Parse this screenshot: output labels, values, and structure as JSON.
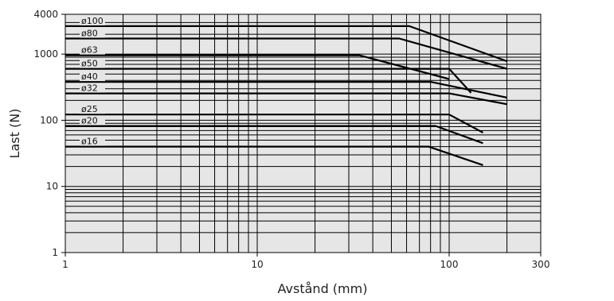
{
  "chart_data": {
    "type": "line",
    "xlabel": "Avstånd (mm)",
    "ylabel": "Last (N)",
    "x_scale": "log",
    "y_scale": "log",
    "xlim": [
      1,
      300
    ],
    "ylim": [
      1,
      4000
    ],
    "x_ticks": [
      {
        "value": 1,
        "label": "1"
      },
      {
        "value": 10,
        "label": "10"
      },
      {
        "value": 100,
        "label": "100"
      },
      {
        "value": 300,
        "label": "300"
      }
    ],
    "y_ticks": [
      {
        "value": 1,
        "label": "1"
      },
      {
        "value": 10,
        "label": "10"
      },
      {
        "value": 100,
        "label": "100"
      },
      {
        "value": 1000,
        "label": "1000"
      },
      {
        "value": 4000,
        "label": "4000"
      }
    ],
    "grid": true,
    "background_color": "#e6e6e6",
    "line_color": "#000000",
    "series": [
      {
        "name": "ø100",
        "x": [
          1,
          62,
          200
        ],
        "y": [
          2650,
          2650,
          780
        ]
      },
      {
        "name": "ø80",
        "x": [
          1,
          55,
          200
        ],
        "y": [
          1720,
          1720,
          600
        ]
      },
      {
        "name": "ø63",
        "x": [
          1,
          34,
          100
        ],
        "y": [
          960,
          960,
          420
        ]
      },
      {
        "name": "ø50",
        "x": [
          1,
          100,
          130
        ],
        "y": [
          600,
          600,
          260
        ]
      },
      {
        "name": "ø40",
        "x": [
          1,
          80,
          200
        ],
        "y": [
          380,
          380,
          220
        ]
      },
      {
        "name": "ø32",
        "x": [
          1,
          100,
          200
        ],
        "y": [
          255,
          255,
          175
        ]
      },
      {
        "name": "ø25",
        "x": [
          1,
          100,
          150
        ],
        "y": [
          122,
          122,
          65
        ]
      },
      {
        "name": "ø20",
        "x": [
          1,
          85,
          150
        ],
        "y": [
          82,
          82,
          45
        ]
      },
      {
        "name": "ø16",
        "x": [
          1,
          78,
          150
        ],
        "y": [
          40,
          40,
          21
        ]
      }
    ]
  }
}
